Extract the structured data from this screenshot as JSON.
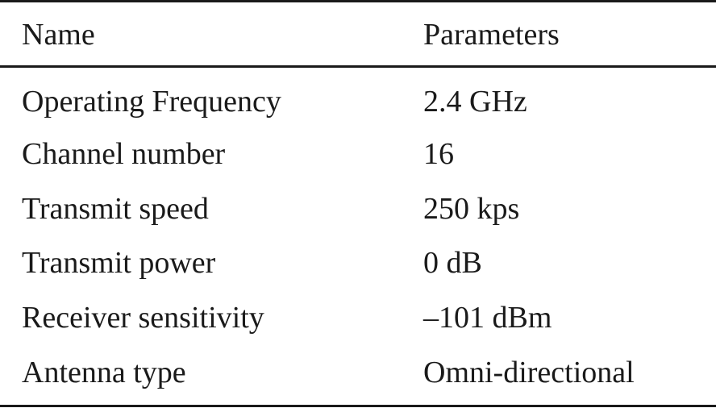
{
  "table": {
    "headers": {
      "name": "Name",
      "parameters": "Parameters"
    },
    "rows": [
      {
        "name": "Operating Frequency",
        "parameters": "2.4 GHz"
      },
      {
        "name": "Channel number",
        "parameters": "16"
      },
      {
        "name": "Transmit speed",
        "parameters": "250 kps"
      },
      {
        "name": "Transmit power",
        "parameters": "0 dB"
      },
      {
        "name": "Receiver sensitivity",
        "parameters": "–101 dBm"
      },
      {
        "name": "Antenna type",
        "parameters": "Omni-directional"
      }
    ]
  }
}
